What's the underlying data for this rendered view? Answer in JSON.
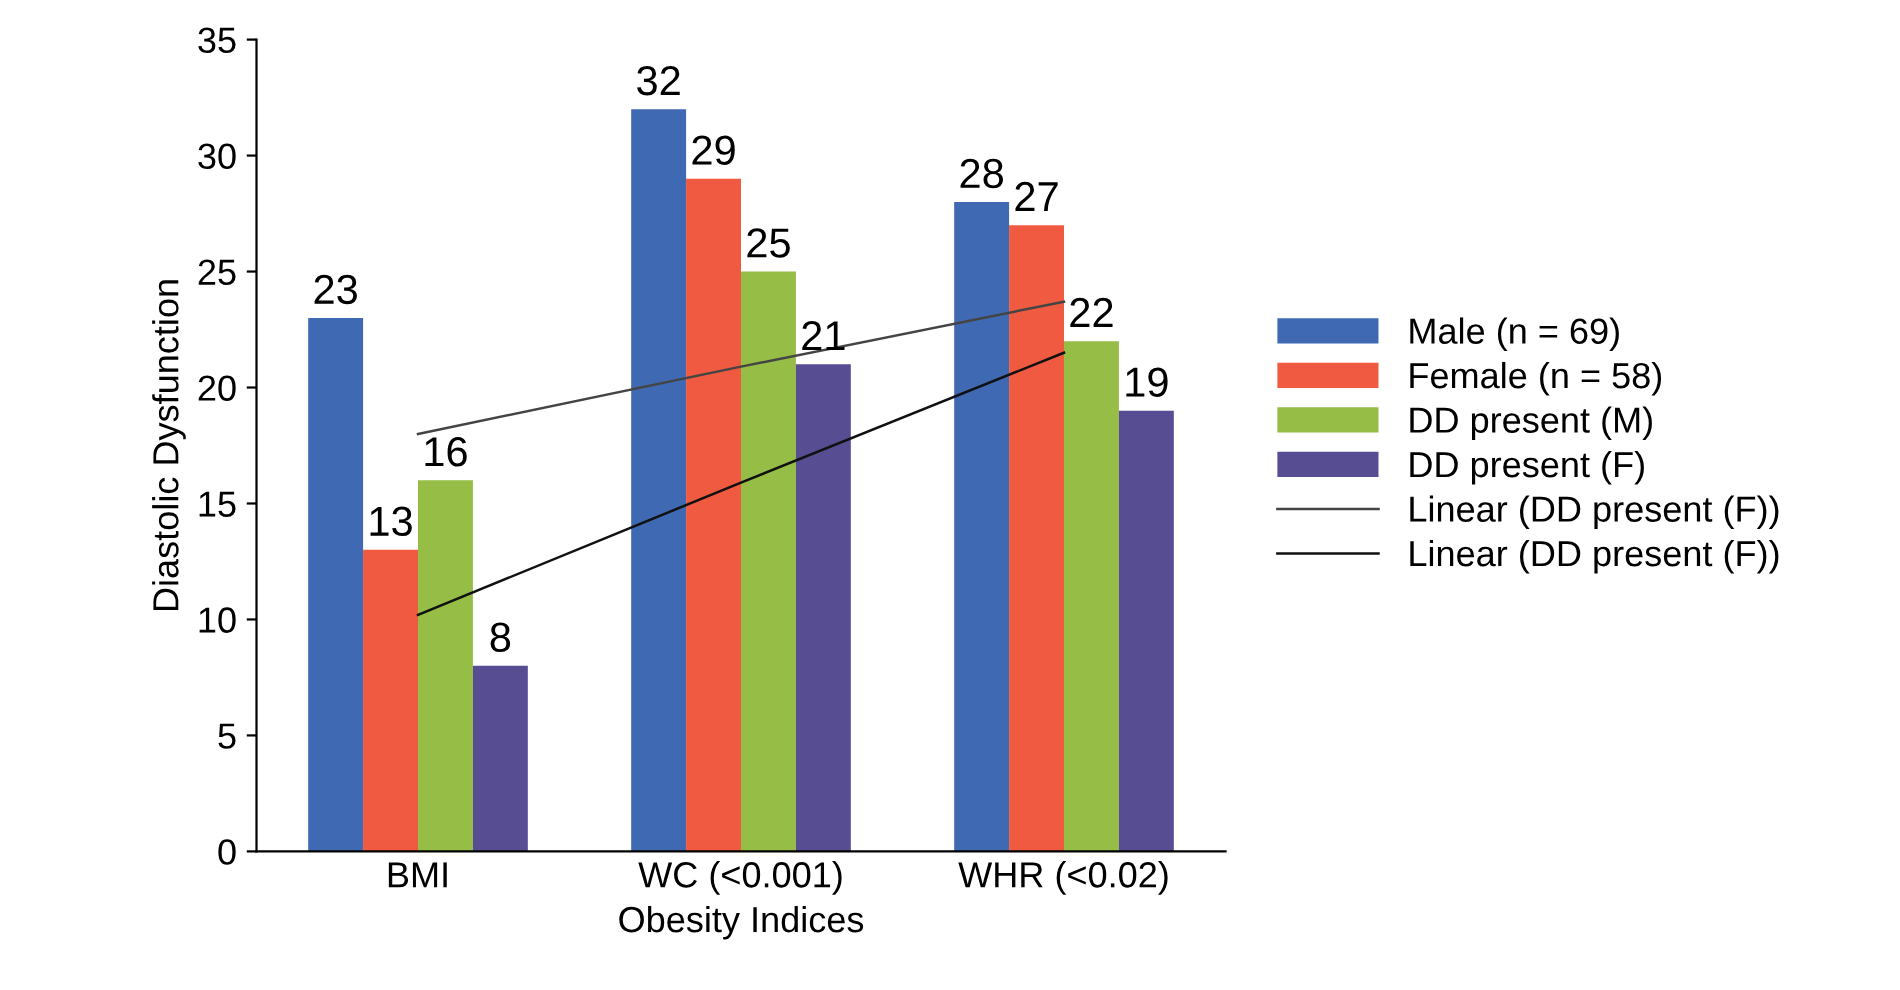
{
  "chart_data": {
    "type": "bar",
    "xlabel": "Obesity Indices",
    "ylabel": "Diastolic Dysfunction",
    "categories": [
      "BMI",
      "WC (<0.001)",
      "WHR (<0.02)"
    ],
    "series": [
      {
        "name": "Male (n = 69)",
        "color": "#3f69b2",
        "values": [
          23,
          32,
          28
        ],
        "value_labels": [
          "23",
          "32",
          "28"
        ]
      },
      {
        "name": "Female (n = 58)",
        "color": "#f05a40",
        "values": [
          13,
          29,
          27
        ],
        "value_labels": [
          "13",
          "29",
          "27"
        ]
      },
      {
        "name": "DD present (M)",
        "color": "#96bd45",
        "values": [
          16,
          25,
          22
        ],
        "value_labels": [
          "16",
          "25",
          "22"
        ]
      },
      {
        "name": "DD present (F)",
        "color": "#574d92",
        "values": [
          8,
          21,
          19
        ],
        "value_labels": [
          "8",
          "21",
          "19"
        ]
      },
      {
        "name": "Linear (DD present (F))",
        "type": "line",
        "color": "#444444",
        "values": [
          18.0,
          20.9,
          23.7
        ]
      },
      {
        "name": "Linear (DD present (F))",
        "type": "line",
        "color": "#111111",
        "values": [
          10.2,
          15.9,
          21.5
        ]
      }
    ],
    "ylim": [
      0,
      35
    ],
    "yticks": [
      0,
      5,
      10,
      15,
      20,
      25,
      30,
      35
    ],
    "legend": "right"
  }
}
